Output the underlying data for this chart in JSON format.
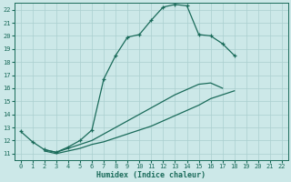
{
  "xlabel": "Humidex (Indice chaleur)",
  "ylabel": "",
  "bg_color": "#cce8e8",
  "grid_color": "#aacfcf",
  "line_color": "#1a6b5a",
  "xlim": [
    -0.5,
    22.5
  ],
  "ylim": [
    10.5,
    22.5
  ],
  "yticks": [
    11,
    12,
    13,
    14,
    15,
    16,
    17,
    18,
    19,
    20,
    21,
    22
  ],
  "xticks": [
    0,
    1,
    2,
    3,
    4,
    5,
    6,
    7,
    8,
    9,
    10,
    11,
    12,
    13,
    14,
    15,
    16,
    17,
    18,
    19,
    20,
    21,
    22
  ],
  "curve1_x": [
    0,
    1,
    2,
    3,
    4,
    5,
    6,
    7,
    8,
    9,
    10,
    11,
    12,
    13,
    14,
    15,
    16,
    17,
    18,
    19,
    20,
    21,
    22
  ],
  "curve1_y": [
    12.7,
    11.9,
    11.3,
    11.1,
    11.5,
    12.0,
    12.8,
    16.7,
    18.5,
    19.9,
    20.1,
    21.2,
    22.2,
    22.4,
    22.3,
    20.1,
    20.0,
    19.4,
    18.5,
    null,
    null,
    null,
    null
  ],
  "curve2_x": [
    2,
    3,
    4,
    5,
    6,
    7,
    8,
    9,
    10,
    11,
    12,
    13,
    14,
    15,
    16,
    17,
    18,
    19,
    20,
    21,
    22
  ],
  "curve2_y": [
    11.3,
    11.1,
    11.4,
    11.7,
    12.0,
    12.5,
    13.0,
    13.5,
    14.0,
    14.5,
    15.0,
    15.5,
    15.9,
    16.3,
    16.4,
    16.0,
    null,
    null,
    null,
    null,
    null
  ],
  "curve3_x": [
    2,
    3,
    4,
    5,
    6,
    7,
    8,
    9,
    10,
    11,
    12,
    13,
    14,
    15,
    16,
    17,
    18,
    19,
    20,
    21,
    22
  ],
  "curve3_y": [
    11.2,
    11.0,
    11.2,
    11.4,
    11.7,
    11.9,
    12.2,
    12.5,
    12.8,
    13.1,
    13.5,
    13.9,
    14.3,
    14.7,
    15.2,
    15.5,
    15.8,
    null,
    null,
    null,
    null
  ]
}
